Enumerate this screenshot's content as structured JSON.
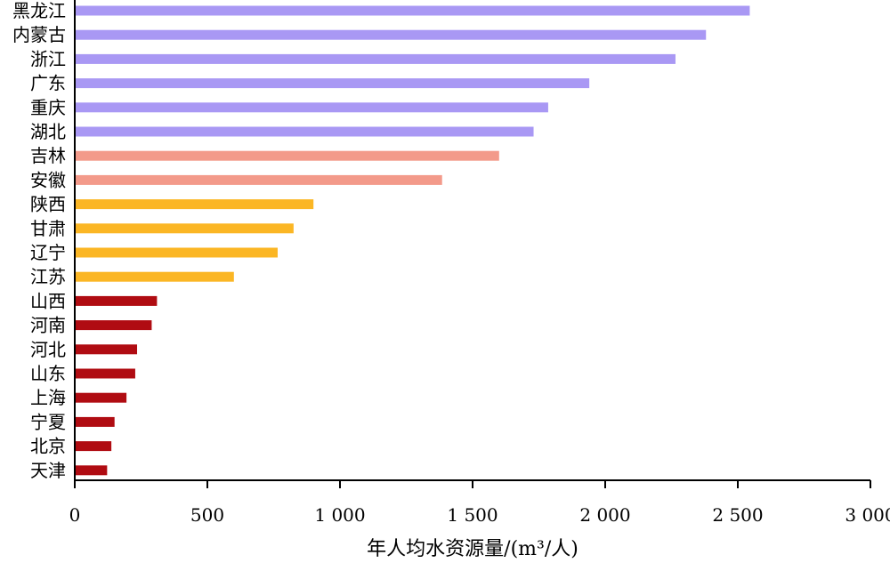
{
  "chart_data": {
    "type": "bar",
    "orientation": "horizontal",
    "xlabel": "年人均水资源量/(m³/人)",
    "ylabel": "",
    "xlim": [
      0,
      3000
    ],
    "xticks": [
      0,
      500,
      1000,
      1500,
      2000,
      2500,
      3000
    ],
    "xtick_labels": [
      "0",
      "500",
      "1 000",
      "1 500",
      "2 000",
      "2 500",
      "3 000"
    ],
    "grid": false,
    "categories": [
      "黑龙江",
      "内蒙古",
      "浙江",
      "广东",
      "重庆",
      "湖北",
      "吉林",
      "安徽",
      "陕西",
      "甘肃",
      "辽宁",
      "江苏",
      "山西",
      "河南",
      "河北",
      "山东",
      "上海",
      "宁夏",
      "北京",
      "天津"
    ],
    "values": [
      2545,
      2380,
      2265,
      1940,
      1785,
      1730,
      1600,
      1385,
      900,
      825,
      765,
      600,
      310,
      290,
      235,
      228,
      195,
      150,
      138,
      122
    ],
    "colors": [
      "#a998f4",
      "#a998f4",
      "#a998f4",
      "#a998f4",
      "#a998f4",
      "#a998f4",
      "#f39a8a",
      "#f39a8a",
      "#fbb624",
      "#fbb624",
      "#fbb624",
      "#fbb624",
      "#b00c12",
      "#b00c12",
      "#b00c12",
      "#b00c12",
      "#b00c12",
      "#b00c12",
      "#b00c12",
      "#b00c12"
    ]
  }
}
